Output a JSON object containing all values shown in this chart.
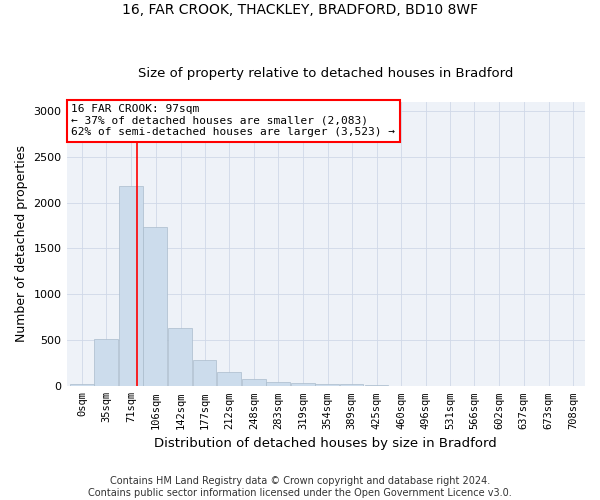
{
  "title1": "16, FAR CROOK, THACKLEY, BRADFORD, BD10 8WF",
  "title2": "Size of property relative to detached houses in Bradford",
  "xlabel": "Distribution of detached houses by size in Bradford",
  "ylabel": "Number of detached properties",
  "bar_labels": [
    "0sqm",
    "35sqm",
    "71sqm",
    "106sqm",
    "142sqm",
    "177sqm",
    "212sqm",
    "248sqm",
    "283sqm",
    "319sqm",
    "354sqm",
    "389sqm",
    "425sqm",
    "460sqm",
    "496sqm",
    "531sqm",
    "566sqm",
    "602sqm",
    "637sqm",
    "673sqm",
    "708sqm"
  ],
  "bar_values": [
    25,
    520,
    2185,
    1730,
    630,
    290,
    155,
    80,
    45,
    35,
    30,
    20,
    15,
    5,
    5,
    2,
    2,
    1,
    0,
    0,
    0
  ],
  "bar_color": "#ccdcec",
  "bar_edge_color": "#aabccc",
  "x_positions": [
    0,
    35,
    71,
    106,
    142,
    177,
    212,
    248,
    283,
    319,
    354,
    389,
    425,
    460,
    496,
    531,
    566,
    602,
    637,
    673,
    708
  ],
  "property_line_x": 97,
  "annotation_line1": "16 FAR CROOK: 97sqm",
  "annotation_line2": "← 37% of detached houses are smaller (2,083)",
  "annotation_line3": "62% of semi-detached houses are larger (3,523) →",
  "annotation_box_color": "white",
  "annotation_border_color": "red",
  "vline_color": "red",
  "ylim": [
    0,
    3100
  ],
  "xlim": [
    -5,
    743
  ],
  "footer1": "Contains HM Land Registry data © Crown copyright and database right 2024.",
  "footer2": "Contains public sector information licensed under the Open Government Licence v3.0.",
  "bin_width": 35,
  "bg_color": "#eef2f8",
  "grid_color": "#d0d8e8"
}
